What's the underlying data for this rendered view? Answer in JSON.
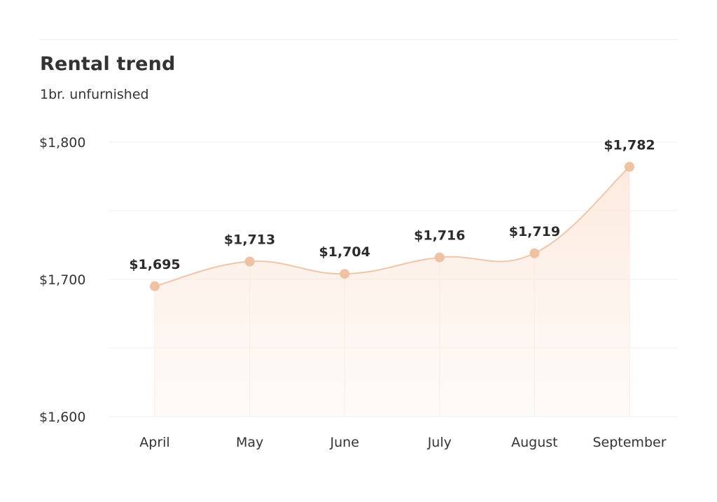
{
  "title": "Rental trend",
  "subtitle": "1br. unfurnished",
  "chart_data": {
    "type": "area",
    "title": "Rental trend",
    "subtitle": "1br. unfurnished",
    "categories": [
      "April",
      "May",
      "June",
      "July",
      "August",
      "September"
    ],
    "series": [
      {
        "values": [
          1695,
          1713,
          1704,
          1716,
          1719,
          1782
        ],
        "labels": [
          "$1,695",
          "$1,713",
          "$1,704",
          "$1,716",
          "$1,719",
          "$1,782"
        ]
      }
    ],
    "ylim": [
      1600,
      1800
    ],
    "yticks": [
      1600,
      1700,
      1800
    ],
    "ytick_labels": [
      "$1,600",
      "$1,700",
      "$1,800"
    ],
    "grid": true,
    "colors": {
      "line": "#efc6ab",
      "marker": "#f0c2a4",
      "fill": "#fdeee4",
      "grid": "#eeeeee"
    }
  }
}
